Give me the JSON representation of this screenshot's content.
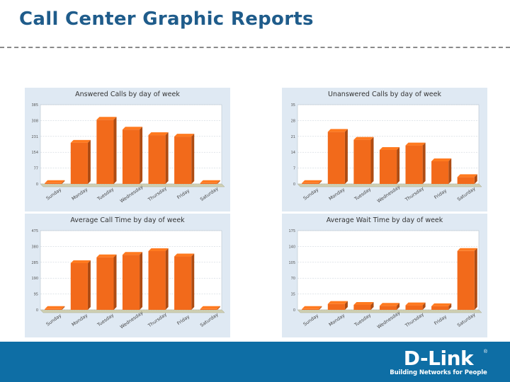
{
  "page": {
    "title": "Call Center Graphic Reports"
  },
  "logo": {
    "brand": "D-Link",
    "registered": "®",
    "tagline": "Building Networks for People"
  },
  "colors": {
    "title": "#1f5c8b",
    "bar": "#f26a1b",
    "panel": "#dfe9f3",
    "footer": "#0e6ea5"
  },
  "chart_data": [
    {
      "type": "bar",
      "title": "Answered Calls by day of week",
      "categories": [
        "Sunday",
        "Monday",
        "Tuesday",
        "Wednesday",
        "Thursday",
        "Friday",
        "Saturday"
      ],
      "values": [
        0,
        200,
        312,
        264,
        237,
        230,
        0
      ],
      "yticks": [
        "0",
        "77",
        "154",
        "231",
        "308",
        "385"
      ],
      "ylim": [
        0,
        385
      ]
    },
    {
      "type": "bar",
      "title": "Unanswered Calls by day of week",
      "categories": [
        "Sunday",
        "Monday",
        "Tuesday",
        "Wednesday",
        "Thursday",
        "Friday",
        "Saturday"
      ],
      "values": [
        0,
        23,
        19.5,
        15,
        17,
        10,
        3
      ],
      "yticks": [
        "0",
        "7",
        "14",
        "21",
        "28",
        "35"
      ],
      "ylim": [
        0,
        35
      ]
    },
    {
      "type": "bar",
      "title": "Average Call Time by day of week",
      "categories": [
        "Sunday",
        "Monday",
        "Tuesday",
        "Wednesday",
        "Thursday",
        "Friday",
        "Saturday"
      ],
      "values": [
        0,
        280,
        315,
        330,
        352,
        320,
        0
      ],
      "yticks": [
        "0",
        "95",
        "190",
        "285",
        "380",
        "475"
      ],
      "ylim": [
        0,
        475
      ]
    },
    {
      "type": "bar",
      "title": "Average Wait Time by day of week",
      "categories": [
        "Sunday",
        "Monday",
        "Tuesday",
        "Wednesday",
        "Thursday",
        "Friday",
        "Saturday"
      ],
      "values": [
        0,
        13,
        11,
        9,
        10,
        8,
        130
      ],
      "yticks": [
        "0",
        "35",
        "70",
        "105",
        "140",
        "175"
      ],
      "ylim": [
        0,
        175
      ]
    }
  ]
}
